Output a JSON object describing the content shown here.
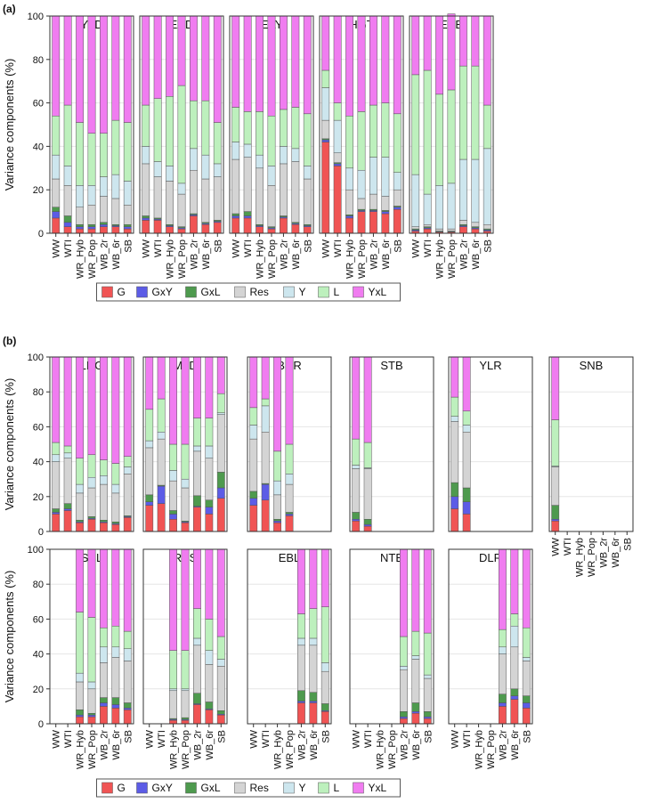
{
  "panel_labels": [
    "(a)",
    "(b)"
  ],
  "legend_items": [
    {
      "key": "G",
      "color": "#f05454"
    },
    {
      "key": "GxY",
      "color": "#5c5ce6"
    },
    {
      "key": "GxL",
      "color": "#4e9a4e"
    },
    {
      "key": "Res",
      "color": "#d4d4d4"
    },
    {
      "key": "Y",
      "color": "#cde6ee"
    },
    {
      "key": "L",
      "color": "#bdf0bd"
    },
    {
      "key": "YxL",
      "color": "#f07cf0"
    }
  ],
  "chart_data": [
    {
      "type": "bar",
      "stacked": true,
      "panel": "(a)",
      "ylabel": "Variance components (%)",
      "ylim": [
        0,
        100
      ],
      "yticks": [
        0,
        20,
        40,
        60,
        80,
        100
      ],
      "grid": true,
      "legend_position": "bottom",
      "categories": [
        "WW",
        "WTI",
        "WR_Hyb",
        "WR_Pop",
        "WB_2r",
        "WB_6r",
        "SB"
      ],
      "series_order": [
        "G",
        "GxY",
        "GxL",
        "Res",
        "Y",
        "L",
        "YxL"
      ],
      "facets": [
        {
          "name": "YLD",
          "bars": [
            [
              7,
              3,
              2,
              13,
              11,
              18,
              46
            ],
            [
              3,
              2,
              3,
              14,
              9,
              28,
              41
            ],
            [
              2,
              1,
              1,
              8,
              10,
              29,
              49
            ],
            [
              2,
              1,
              1,
              9,
              9,
              24,
              54
            ],
            [
              3,
              1,
              1,
              12,
              9,
              20,
              54
            ],
            [
              3,
              0.5,
              0.5,
              12,
              11,
              25,
              48
            ],
            [
              2,
              1,
              1,
              9,
              11,
              27,
              49
            ]
          ]
        },
        {
          "name": "EAD",
          "bars": [
            [
              6,
              1,
              1,
              24,
              8,
              19,
              41
            ],
            [
              6,
              0.5,
              0.5,
              19,
              7,
              29,
              38
            ],
            [
              3,
              0.5,
              0.5,
              20,
              7,
              32,
              37
            ],
            [
              2,
              0.5,
              0.5,
              15,
              5,
              45,
              32
            ],
            [
              8,
              0.5,
              0.5,
              20,
              10,
              22,
              39
            ],
            [
              4,
              0.5,
              0.5,
              20,
              11,
              25,
              39
            ],
            [
              5,
              0.5,
              0.5,
              20,
              6,
              19,
              49
            ]
          ]
        },
        {
          "name": "EAY",
          "bars": [
            [
              7,
              1,
              1,
              25,
              8,
              16,
              42
            ],
            [
              7,
              1,
              2,
              25,
              6,
              15,
              44
            ],
            [
              3,
              0.5,
              0.5,
              26,
              6,
              20,
              44
            ],
            [
              2,
              0.5,
              0.5,
              19,
              9,
              23,
              46
            ],
            [
              7,
              0.5,
              0.5,
              24,
              8,
              17,
              43
            ],
            [
              4,
              0.5,
              0.5,
              28,
              6,
              19,
              42
            ],
            [
              3,
              0.5,
              0.5,
              21,
              6,
              24,
              45
            ]
          ]
        },
        {
          "name": "HGT",
          "bars": [
            [
              42,
              1,
              0.5,
              8.5,
              15,
              8,
              25
            ],
            [
              31,
              1,
              0.5,
              4.5,
              15,
              8,
              40
            ],
            [
              7,
              1,
              0.5,
              11.5,
              10,
              24,
              46
            ],
            [
              10,
              0.5,
              0.5,
              5,
              13,
              27,
              44
            ],
            [
              10,
              0.5,
              0.5,
              7,
              17,
              24,
              41
            ],
            [
              9,
              1,
              0.5,
              6.5,
              18,
              25,
              40
            ],
            [
              11,
              1,
              0.5,
              7.5,
              8,
              27,
              45
            ]
          ]
        },
        {
          "name": "EAE",
          "bars": [
            [
              1,
              0.5,
              0.5,
              1,
              24,
              46,
              27
            ],
            [
              2,
              0.5,
              0.5,
              1,
              14,
              57,
              25
            ],
            [
              0.5,
              0.25,
              0.25,
              1,
              20,
              42,
              36
            ],
            [
              0.5,
              0.25,
              0.25,
              1,
              21,
              43,
              35
            ],
            [
              3,
              0.5,
              0.5,
              2,
              28,
              43,
              23
            ],
            [
              2,
              0.5,
              0.5,
              2,
              29,
              43,
              23
            ],
            [
              1,
              0.5,
              0.5,
              2,
              35,
              20,
              41
            ]
          ]
        }
      ]
    },
    {
      "type": "bar",
      "stacked": true,
      "panel": "(b)",
      "ylabel": "Variance components (%)",
      "ylim": [
        0,
        100
      ],
      "yticks": [
        0,
        20,
        40,
        60,
        80,
        100
      ],
      "grid": true,
      "legend_position": "bottom",
      "categories": [
        "WW",
        "WTI",
        "WR_Hyb",
        "WR_Pop",
        "WB_2r",
        "WB_6r",
        "SB"
      ],
      "series_order": [
        "G",
        "GxY",
        "GxL",
        "Res",
        "Y",
        "L",
        "YxL"
      ],
      "facets": [
        {
          "name": "LDG",
          "bars": [
            [
              10,
              1,
              2,
              27,
              4,
              7,
              49
            ],
            [
              12,
              1,
              3,
              26,
              3,
              4,
              51
            ],
            [
              5,
              0.5,
              1,
              15.5,
              5,
              15,
              58
            ],
            [
              7,
              0.5,
              1,
              16.5,
              6,
              13,
              56
            ],
            [
              5,
              0.5,
              1,
              20.5,
              5,
              9,
              59
            ],
            [
              4,
              0.5,
              1,
              16.5,
              5,
              12,
              61
            ],
            [
              8,
              0.5,
              0.5,
              24,
              4,
              6,
              57
            ]
          ]
        },
        {
          "name": "MLD",
          "bars": [
            [
              15,
              2,
              4,
              27,
              4,
              18,
              30
            ],
            [
              16,
              10,
              0.5,
              26.5,
              4,
              19,
              24
            ],
            [
              7,
              3,
              2,
              17,
              6,
              15,
              50
            ],
            [
              5,
              0.5,
              0.5,
              19,
              5,
              20,
              50
            ],
            [
              14,
              0.5,
              6,
              25.5,
              3,
              16,
              35
            ],
            [
              10,
              4,
              4,
              24,
              7,
              16,
              35
            ],
            [
              19,
              6,
              9,
              33,
              1,
              11,
              21
            ]
          ]
        },
        {
          "name": "BNR",
          "bars": [
            [
              15,
              4,
              4,
              30,
              8,
              10,
              29
            ],
            [
              18,
              9,
              0.5,
              29.5,
              15,
              4,
              24
            ],
            [
              5,
              1,
              1,
              14,
              8,
              17,
              54
            ],
            [
              9,
              1,
              1,
              16,
              6,
              17,
              50
            ],
            null,
            null,
            null
          ]
        },
        {
          "name": "STB",
          "bars": [
            [
              6,
              1,
              4,
              25,
              2,
              15,
              47
            ],
            [
              3,
              1,
              3,
              29,
              0.5,
              14.5,
              49
            ],
            null,
            null,
            null,
            null,
            null
          ]
        },
        {
          "name": "YLR",
          "bars": [
            [
              13,
              7,
              8,
              35,
              3,
              11,
              23
            ],
            [
              10,
              7,
              8,
              32,
              4,
              8,
              31
            ],
            null,
            null,
            null,
            null,
            null
          ]
        },
        {
          "name": "SNB",
          "bars": [
            [
              6,
              1,
              8,
              22,
              0.5,
              26.5,
              36
            ],
            null,
            null,
            null,
            null,
            null,
            null
          ]
        },
        {
          "name": "SBL",
          "bars": [
            null,
            null,
            [
              4,
              1,
              3,
              16,
              5,
              35,
              36
            ],
            [
              4,
              1,
              1,
              14,
              4,
              37,
              39
            ],
            [
              10,
              2,
              3,
              20,
              9,
              11,
              45
            ],
            [
              9,
              2,
              4,
              23,
              6,
              12,
              44
            ],
            [
              8,
              1,
              3,
              24,
              7,
              10,
              47
            ]
          ]
        },
        {
          "name": "RYS",
          "bars": [
            null,
            null,
            [
              2,
              0.5,
              0.5,
              16,
              1,
              22,
              58
            ],
            [
              2,
              0.5,
              1,
              15.5,
              1,
              22,
              58
            ],
            [
              11,
              0.5,
              6,
              27.5,
              4,
              17,
              34
            ],
            [
              8,
              0.5,
              4,
              21.5,
              8,
              18,
              40
            ],
            [
              5,
              0.5,
              2,
              25.5,
              4,
              13,
              50
            ]
          ]
        },
        {
          "name": "EBL",
          "bars": [
            null,
            null,
            null,
            null,
            [
              12,
              1,
              6,
              26,
              4,
              14,
              37
            ],
            [
              12,
              1,
              5,
              27,
              4,
              17,
              34
            ],
            [
              7,
              0.5,
              4,
              18.5,
              5,
              32,
              33
            ]
          ]
        },
        {
          "name": "NTB",
          "bars": [
            null,
            null,
            null,
            null,
            [
              3,
              1,
              3,
              24,
              2,
              17,
              50
            ],
            [
              6,
              1,
              5,
              25,
              2,
              14,
              47
            ],
            [
              3,
              1,
              3,
              19,
              2,
              24,
              48
            ]
          ]
        },
        {
          "name": "DLR",
          "bars": [
            null,
            null,
            null,
            null,
            [
              10,
              2,
              5,
              23,
              4,
              10,
              46
            ],
            [
              14,
              2,
              4,
              24,
              12,
              7,
              37
            ],
            [
              9,
              3,
              4,
              20,
              2,
              17,
              45
            ]
          ]
        }
      ]
    }
  ]
}
